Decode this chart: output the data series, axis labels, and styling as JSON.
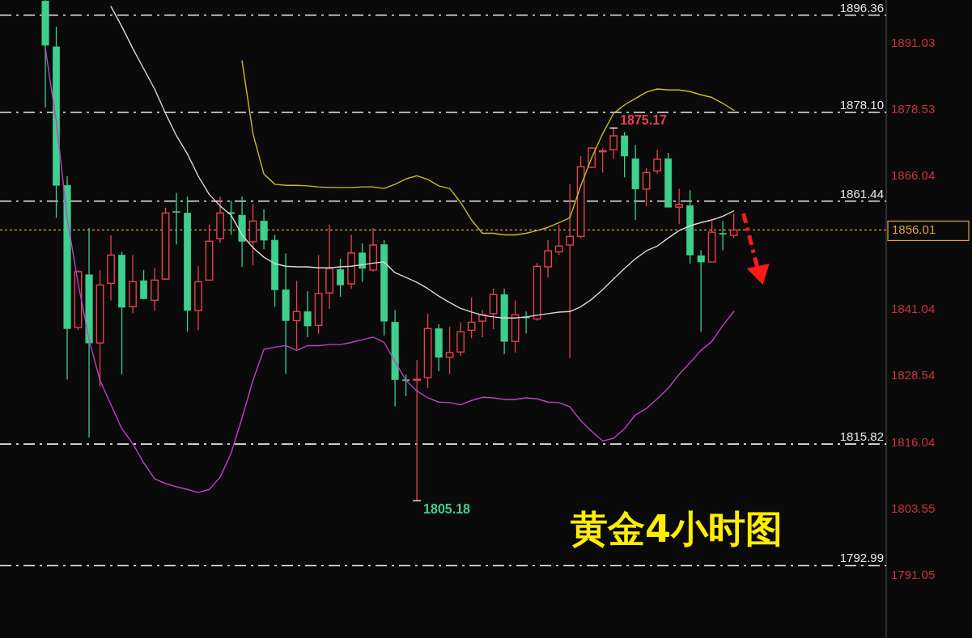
{
  "chart_data": {
    "type": "candlestick",
    "title": "黄金4小时图",
    "categories": [
      null,
      null,
      null,
      null,
      null,
      null,
      null,
      null,
      null,
      null,
      null,
      null,
      null,
      null,
      null,
      null,
      null,
      null,
      null,
      null,
      null,
      null,
      null,
      null,
      null,
      null,
      null,
      null,
      null,
      null,
      null,
      null,
      null,
      null,
      null,
      null,
      null,
      null,
      null,
      null,
      null,
      null,
      null,
      null,
      null,
      null,
      null,
      null,
      null,
      null,
      null,
      null,
      null,
      null,
      null,
      null,
      null,
      null,
      null,
      null,
      null,
      null,
      null,
      null
    ],
    "ohlc": [
      [
        1899.0,
        1899.2,
        1879.0,
        1890.7
      ],
      [
        1890.4,
        1894.2,
        1858.3,
        1864.4
      ],
      [
        1864.4,
        1866.1,
        1827.9,
        1837.5
      ],
      [
        1837.7,
        1848.5,
        1837.2,
        1848.2
      ],
      [
        1847.6,
        1856.4,
        1817.0,
        1834.8
      ],
      [
        1834.8,
        1848.5,
        1826.6,
        1845.7
      ],
      [
        1846.0,
        1855.0,
        1842.8,
        1851.3
      ],
      [
        1851.3,
        1851.9,
        1828.9,
        1841.5
      ],
      [
        1841.6,
        1851.3,
        1840.4,
        1846.3
      ],
      [
        1846.5,
        1848.5,
        1843.0,
        1843.1
      ],
      [
        1842.8,
        1848.9,
        1840.9,
        1846.6
      ],
      [
        1846.8,
        1860.2,
        1846.6,
        1859.2
      ],
      [
        1859.5,
        1863.0,
        1853.3,
        1859.3
      ],
      [
        1859.2,
        1862.3,
        1836.9,
        1840.9
      ],
      [
        1840.9,
        1849.2,
        1837.2,
        1846.3
      ],
      [
        1846.6,
        1857.0,
        1846.5,
        1853.9
      ],
      [
        1854.4,
        1862.3,
        1853.6,
        1859.2
      ],
      [
        1859.3,
        1861.5,
        1855.1,
        1859.1
      ],
      [
        1858.8,
        1862.3,
        1849.1,
        1853.9
      ],
      [
        1853.8,
        1860.9,
        1849.4,
        1857.7
      ],
      [
        1857.7,
        1859.9,
        1852.4,
        1854.1
      ],
      [
        1854.1,
        1855.1,
        1841.6,
        1844.8
      ],
      [
        1844.8,
        1851.6,
        1829.0,
        1839.0
      ],
      [
        1839.0,
        1846.5,
        1833.6,
        1840.7
      ],
      [
        1840.7,
        1844.5,
        1835.9,
        1838.0
      ],
      [
        1838.1,
        1851.3,
        1836.5,
        1844.1
      ],
      [
        1844.2,
        1857.0,
        1841.2,
        1848.8
      ],
      [
        1848.6,
        1850.6,
        1843.5,
        1845.7
      ],
      [
        1845.9,
        1855.1,
        1845.0,
        1851.7
      ],
      [
        1851.7,
        1853.5,
        1846.3,
        1848.8
      ],
      [
        1848.5,
        1856.4,
        1848.2,
        1853.2
      ],
      [
        1853.3,
        1854.1,
        1836.2,
        1838.9
      ],
      [
        1838.7,
        1841.0,
        1822.9,
        1827.9
      ],
      [
        1827.9,
        1828.9,
        1824.8,
        1827.7
      ],
      [
        1827.8,
        1831.6,
        1805.18,
        1828.0
      ],
      [
        1828.3,
        1840.3,
        1826.3,
        1837.5
      ],
      [
        1837.5,
        1838.3,
        1829.5,
        1832.1
      ],
      [
        1832.1,
        1837.8,
        1829.0,
        1833.0
      ],
      [
        1833.1,
        1838.7,
        1832.4,
        1836.9
      ],
      [
        1837.2,
        1843.3,
        1835.7,
        1838.7
      ],
      [
        1838.9,
        1841.0,
        1835.9,
        1840.1
      ],
      [
        1840.3,
        1845.0,
        1837.4,
        1843.9
      ],
      [
        1843.9,
        1845.0,
        1832.7,
        1835.1
      ],
      [
        1835.1,
        1842.8,
        1833.0,
        1840.1
      ],
      [
        1839.7,
        1840.7,
        1836.6,
        1839.5
      ],
      [
        1839.3,
        1849.8,
        1839.0,
        1849.2
      ],
      [
        1849.1,
        1854.1,
        1847.1,
        1852.1
      ],
      [
        1851.9,
        1857.0,
        1851.3,
        1853.0
      ],
      [
        1853.2,
        1864.6,
        1831.9,
        1854.8
      ],
      [
        1854.8,
        1869.9,
        1854.4,
        1867.9
      ],
      [
        1867.8,
        1871.6,
        1867.6,
        1871.4
      ],
      [
        1870.7,
        1871.4,
        1866.8,
        1870.9
      ],
      [
        1871.1,
        1875.17,
        1869.4,
        1873.7
      ],
      [
        1873.7,
        1874.4,
        1865.9,
        1869.9
      ],
      [
        1869.4,
        1872.0,
        1857.9,
        1863.7
      ],
      [
        1863.7,
        1867.6,
        1860.5,
        1866.8
      ],
      [
        1867.1,
        1871.1,
        1866.5,
        1869.3
      ],
      [
        1869.4,
        1870.5,
        1860.3,
        1860.3
      ],
      [
        1860.3,
        1863.8,
        1857.1,
        1860.8
      ],
      [
        1860.6,
        1863.5,
        1849.7,
        1851.3
      ],
      [
        1851.2,
        1852.2,
        1836.9,
        1850.0
      ],
      [
        1850.0,
        1857.7,
        1850.0,
        1855.6
      ],
      [
        1855.4,
        1857.7,
        1852.2,
        1855.2
      ],
      [
        1855.0,
        1859.1,
        1854.5,
        1856.01
      ]
    ],
    "colors": [
      "#3ecf8e",
      "#3ecf8e",
      "#3ecf8e",
      "#e8404f",
      "#3ecf8e",
      "#e8404f",
      "#e8404f",
      "#3ecf8e",
      "#e8404f",
      "#3ecf8e",
      "#e8404f",
      "#e8404f",
      "#3ecf8e",
      "#3ecf8e",
      "#e8404f",
      "#e8404f",
      "#e8404f",
      "#3ecf8e",
      "#3ecf8e",
      "#e8404f",
      "#3ecf8e",
      "#3ecf8e",
      "#3ecf8e",
      "#e8404f",
      "#3ecf8e",
      "#e8404f",
      "#e8404f",
      "#3ecf8e",
      "#e8404f",
      "#3ecf8e",
      "#e8404f",
      "#3ecf8e",
      "#3ecf8e",
      "#3ecf8e",
      "#e8404f",
      "#e8404f",
      "#3ecf8e",
      "#e8404f",
      "#e8404f",
      "#e8404f",
      "#e8404f",
      "#e8404f",
      "#3ecf8e",
      "#e8404f",
      "#3ecf8e",
      "#e8404f",
      "#e8404f",
      "#e8404f",
      "#e8404f",
      "#e8404f",
      "#e8404f",
      "#e8404f",
      "#e8404f",
      "#3ecf8e",
      "#3ecf8e",
      "#e8404f",
      "#e8404f",
      "#3ecf8e",
      "#e8404f",
      "#3ecf8e",
      "#3ecf8e",
      "#e8404f",
      "#3ecf8e",
      "#e8404f"
    ],
    "series": [
      {
        "type": "line",
        "color": "#c8c020",
        "values": [
          null,
          null,
          null,
          null,
          null,
          null,
          null,
          null,
          null,
          null,
          null,
          null,
          null,
          null,
          null,
          null,
          null,
          null,
          1887.8,
          1874.1,
          1866.5,
          1864.6,
          1864.4,
          1864.4,
          1864.3,
          1864.1,
          1864.0,
          1864.0,
          1864.0,
          1864.1,
          1864.1,
          1863.8,
          1864.6,
          1865.6,
          1866.2,
          1865.5,
          1864.3,
          1863.8,
          1861.2,
          1857.9,
          1855.4,
          1855.4,
          1855.1,
          1855.1,
          1855.4,
          1855.9,
          1856.5,
          1857.4,
          1858.3,
          1864.3,
          1869.6,
          1874.1,
          1877.9,
          1879.5,
          1880.7,
          1881.9,
          1882.5,
          1882.3,
          1882.3,
          1882.0,
          1881.4,
          1880.9,
          1879.8,
          1878.5
        ]
      },
      {
        "type": "line",
        "color": "#d8d8d8",
        "values": [
          null,
          null,
          null,
          null,
          null,
          null,
          1898.0,
          1894.2,
          1890.1,
          1886.3,
          1882.5,
          1877.9,
          1873.7,
          1870.3,
          1866.1,
          1862.7,
          1860.5,
          1858.8,
          1855.1,
          1852.7,
          1850.9,
          1849.7,
          1849.2,
          1849.1,
          1849.1,
          1848.9,
          1848.9,
          1849.1,
          1849.2,
          1849.5,
          1849.8,
          1850.0,
          1848.0,
          1847.1,
          1846.2,
          1845.0,
          1843.6,
          1842.4,
          1841.3,
          1840.6,
          1840.0,
          1839.7,
          1839.5,
          1839.5,
          1839.7,
          1840.0,
          1840.3,
          1840.6,
          1840.7,
          1841.6,
          1843.0,
          1844.8,
          1846.8,
          1848.8,
          1850.6,
          1852.1,
          1853.0,
          1854.5,
          1855.9,
          1856.8,
          1857.4,
          1857.9,
          1858.6,
          1859.6
        ]
      },
      {
        "type": "line",
        "color": "#c040c8",
        "values": [
          1890.1,
          1876.4,
          1858.2,
          1846.0,
          1835.4,
          1827.8,
          1823.2,
          1818.7,
          1815.9,
          1812.3,
          1809.3,
          1808.4,
          1807.8,
          1807.3,
          1806.7,
          1807.3,
          1809.6,
          1814.1,
          1820.7,
          1827.8,
          1833.6,
          1834.0,
          1834.3,
          1833.4,
          1834.3,
          1834.3,
          1834.5,
          1834.5,
          1834.9,
          1835.4,
          1835.9,
          1834.9,
          1831.3,
          1827.8,
          1825.8,
          1824.5,
          1823.7,
          1823.6,
          1823.2,
          1824.0,
          1824.6,
          1824.5,
          1824.2,
          1824.2,
          1824.5,
          1824.3,
          1823.7,
          1823.6,
          1822.8,
          1820.2,
          1818.2,
          1816.4,
          1816.9,
          1818.7,
          1821.3,
          1822.5,
          1824.3,
          1826.3,
          1828.9,
          1831.1,
          1833.4,
          1835.1,
          1838.1,
          1840.7
        ]
      }
    ],
    "ylim": [
      1779.4,
      1899.2
    ],
    "yticks": [
      1891.03,
      1878.53,
      1866.04,
      1841.04,
      1828.54,
      1816.04,
      1803.55,
      1791.05
    ],
    "ref_lines": [
      {
        "axis": "y",
        "value": 1896.36,
        "label": "1896.36",
        "color": "#e8e8e8",
        "line_style": "dashed"
      },
      {
        "axis": "y",
        "value": 1878.1,
        "label": "1878.10",
        "color": "#e8e8e8",
        "line_style": "dashed"
      },
      {
        "axis": "y",
        "value": 1861.44,
        "label": "1861.44",
        "color": "#e8e8e8",
        "line_style": "dashed"
      },
      {
        "axis": "y",
        "value": 1815.82,
        "label": "1815.82",
        "color": "#e8e8e8",
        "line_style": "dashed"
      },
      {
        "axis": "y",
        "value": 1792.99,
        "label": "1792.99",
        "color": "#e8e8e8",
        "line_style": "dashed"
      },
      {
        "axis": "y",
        "value": 1856.01,
        "label": "1856.01",
        "color": "#e0a040",
        "line_style": "dotted"
      }
    ],
    "annotations": [
      "1875.17",
      "1805.18"
    ]
  }
}
